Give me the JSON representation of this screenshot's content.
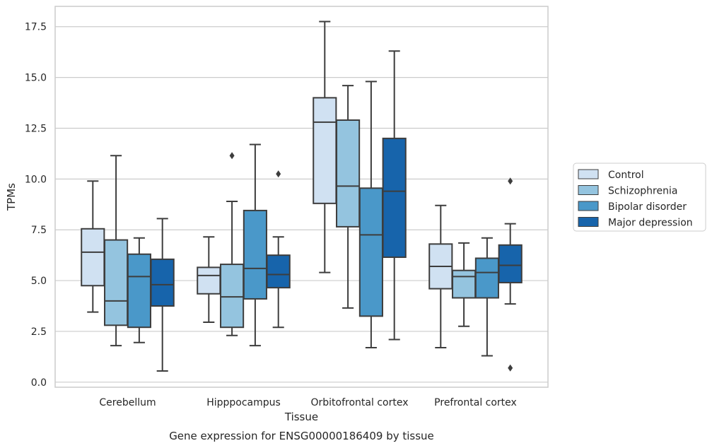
{
  "chart_data": {
    "type": "box",
    "xlabel": "Tissue",
    "ylabel": "TPMs",
    "caption": "Gene expression for ENSG00000186409 by tissue",
    "ylim": [
      -0.25,
      18.5
    ],
    "yticks": [
      "0.0",
      "2.5",
      "5.0",
      "7.5",
      "10.0",
      "12.5",
      "15.0",
      "17.5"
    ],
    "grid": "horizontal",
    "legend_position": "right",
    "categories": [
      "Cerebellum",
      "Hipppocampus",
      "Orbitofrontal cortex",
      "Prefrontal cortex"
    ],
    "series": [
      {
        "name": "Control",
        "color": "#d0e1f2",
        "boxes": [
          {
            "whislo": 3.45,
            "q1": 4.75,
            "med": 6.4,
            "q3": 7.55,
            "whishi": 9.9,
            "fliers": []
          },
          {
            "whislo": 2.95,
            "q1": 4.35,
            "med": 5.25,
            "q3": 5.65,
            "whishi": 7.15,
            "fliers": []
          },
          {
            "whislo": 5.4,
            "q1": 8.8,
            "med": 12.8,
            "q3": 14.0,
            "whishi": 17.75,
            "fliers": []
          },
          {
            "whislo": 1.7,
            "q1": 4.6,
            "med": 5.7,
            "q3": 6.8,
            "whishi": 8.7,
            "fliers": []
          }
        ]
      },
      {
        "name": "Schizophrenia",
        "color": "#94c4df",
        "boxes": [
          {
            "whislo": 1.8,
            "q1": 2.8,
            "med": 4.0,
            "q3": 7.0,
            "whishi": 11.15,
            "fliers": []
          },
          {
            "whislo": 2.3,
            "q1": 2.7,
            "med": 4.2,
            "q3": 5.8,
            "whishi": 8.9,
            "fliers": [
              11.15
            ]
          },
          {
            "whislo": 3.65,
            "q1": 7.65,
            "med": 9.65,
            "q3": 12.9,
            "whishi": 14.6,
            "fliers": []
          },
          {
            "whislo": 2.75,
            "q1": 4.15,
            "med": 5.2,
            "q3": 5.5,
            "whishi": 6.85,
            "fliers": []
          }
        ]
      },
      {
        "name": "Bipolar disorder",
        "color": "#4a98c9",
        "boxes": [
          {
            "whislo": 1.95,
            "q1": 2.7,
            "med": 5.2,
            "q3": 6.3,
            "whishi": 7.1,
            "fliers": []
          },
          {
            "whislo": 1.8,
            "q1": 4.1,
            "med": 5.6,
            "q3": 8.45,
            "whishi": 11.7,
            "fliers": []
          },
          {
            "whislo": 1.7,
            "q1": 3.25,
            "med": 7.25,
            "q3": 9.55,
            "whishi": 14.8,
            "fliers": []
          },
          {
            "whislo": 1.3,
            "q1": 4.15,
            "med": 5.4,
            "q3": 6.1,
            "whishi": 7.1,
            "fliers": []
          }
        ]
      },
      {
        "name": "Major depression",
        "color": "#1764ab",
        "boxes": [
          {
            "whislo": 0.55,
            "q1": 3.75,
            "med": 4.8,
            "q3": 6.05,
            "whishi": 8.05,
            "fliers": []
          },
          {
            "whislo": 2.7,
            "q1": 4.65,
            "med": 5.3,
            "q3": 6.25,
            "whishi": 7.15,
            "fliers": [
              10.25
            ]
          },
          {
            "whislo": 2.1,
            "q1": 6.15,
            "med": 9.4,
            "q3": 12.0,
            "whishi": 16.3,
            "fliers": []
          },
          {
            "whislo": 3.85,
            "q1": 4.9,
            "med": 5.75,
            "q3": 6.75,
            "whishi": 7.8,
            "fliers": [
              9.9,
              0.7
            ]
          }
        ]
      }
    ]
  }
}
